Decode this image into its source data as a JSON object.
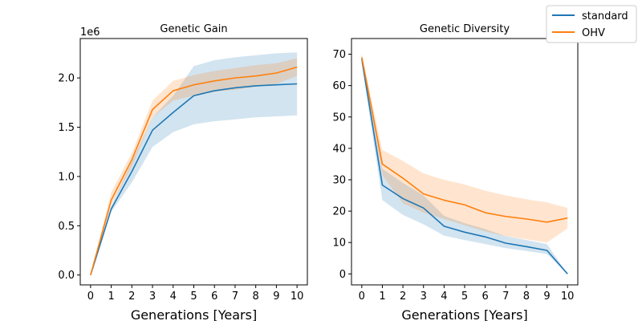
{
  "legend": {
    "entries": [
      {
        "label": "standard",
        "color": "#1f77b4"
      },
      {
        "label": "OHV",
        "color": "#ff7f0e"
      }
    ],
    "placement": "top-right"
  },
  "chart_data": [
    {
      "type": "line",
      "title": "Genetic Gain",
      "xlabel": "Generations [Years]",
      "ylabel": "",
      "offset_label": "1e6",
      "x": [
        0,
        1,
        2,
        3,
        4,
        5,
        6,
        7,
        8,
        9,
        10
      ],
      "xlim": [
        -0.5,
        10.5
      ],
      "ylim": [
        -0.1,
        2.4
      ],
      "xticks": [
        0,
        1,
        2,
        3,
        4,
        5,
        6,
        7,
        8,
        9,
        10
      ],
      "yticks": [
        0.0,
        0.5,
        1.0,
        1.5,
        2.0
      ],
      "ytick_labels": [
        "0.0",
        "0.5",
        "1.0",
        "1.5",
        "2.0"
      ],
      "grid": false,
      "series": [
        {
          "name": "standard",
          "color": "#1f77b4",
          "values": [
            0.0,
            0.67,
            1.05,
            1.47,
            1.65,
            1.82,
            1.87,
            1.9,
            1.92,
            1.93,
            1.94
          ],
          "lower": [
            0.0,
            0.64,
            0.94,
            1.3,
            1.45,
            1.53,
            1.56,
            1.58,
            1.6,
            1.61,
            1.62
          ],
          "upper": [
            0.0,
            0.7,
            1.15,
            1.6,
            1.82,
            2.12,
            2.18,
            2.21,
            2.23,
            2.25,
            2.26
          ]
        },
        {
          "name": "OHV",
          "color": "#ff7f0e",
          "values": [
            0.0,
            0.76,
            1.17,
            1.68,
            1.87,
            1.93,
            1.97,
            2.0,
            2.02,
            2.05,
            2.11
          ],
          "lower": [
            0.0,
            0.71,
            1.1,
            1.6,
            1.77,
            1.82,
            1.86,
            1.88,
            1.91,
            1.94,
            2.02
          ],
          "upper": [
            0.0,
            0.84,
            1.24,
            1.77,
            1.97,
            2.03,
            2.07,
            2.1,
            2.13,
            2.15,
            2.2
          ]
        }
      ]
    },
    {
      "type": "line",
      "title": "Genetic Diversity",
      "xlabel": "Generations [Years]",
      "ylabel": "",
      "x": [
        0,
        1,
        2,
        3,
        4,
        5,
        6,
        7,
        8,
        9,
        10
      ],
      "xlim": [
        -0.5,
        10.5
      ],
      "ylim": [
        -3.5,
        75
      ],
      "xticks": [
        0,
        1,
        2,
        3,
        4,
        5,
        6,
        7,
        8,
        9,
        10
      ],
      "yticks": [
        0,
        10,
        20,
        30,
        40,
        50,
        60,
        70
      ],
      "ytick_labels": [
        "0",
        "10",
        "20",
        "30",
        "40",
        "50",
        "60",
        "70"
      ],
      "grid": false,
      "series": [
        {
          "name": "standard",
          "color": "#1f77b4",
          "values": [
            68.5,
            28.3,
            24.0,
            21.0,
            15.2,
            13.3,
            11.8,
            9.8,
            8.7,
            7.5,
            0.0
          ],
          "lower": [
            67,
            23.5,
            18.8,
            15.8,
            12.2,
            10.8,
            9.5,
            8.2,
            7.3,
            6.3,
            0.0
          ],
          "upper": [
            70,
            33.5,
            29.0,
            25.0,
            18.5,
            16.2,
            14.3,
            12.0,
            10.8,
            9.5,
            0.0
          ]
        },
        {
          "name": "OHV",
          "color": "#ff7f0e",
          "values": [
            69.0,
            35.0,
            30.5,
            25.5,
            23.5,
            22.0,
            19.5,
            18.3,
            17.5,
            16.5,
            17.8
          ],
          "lower": [
            68,
            31.5,
            22.5,
            19.5,
            17.5,
            15.5,
            13.5,
            12.0,
            11.0,
            10.0,
            14.5
          ],
          "upper": [
            70,
            39.5,
            36.0,
            32.0,
            30.0,
            28.5,
            26.5,
            25.0,
            23.8,
            22.8,
            21.0
          ]
        }
      ]
    }
  ]
}
